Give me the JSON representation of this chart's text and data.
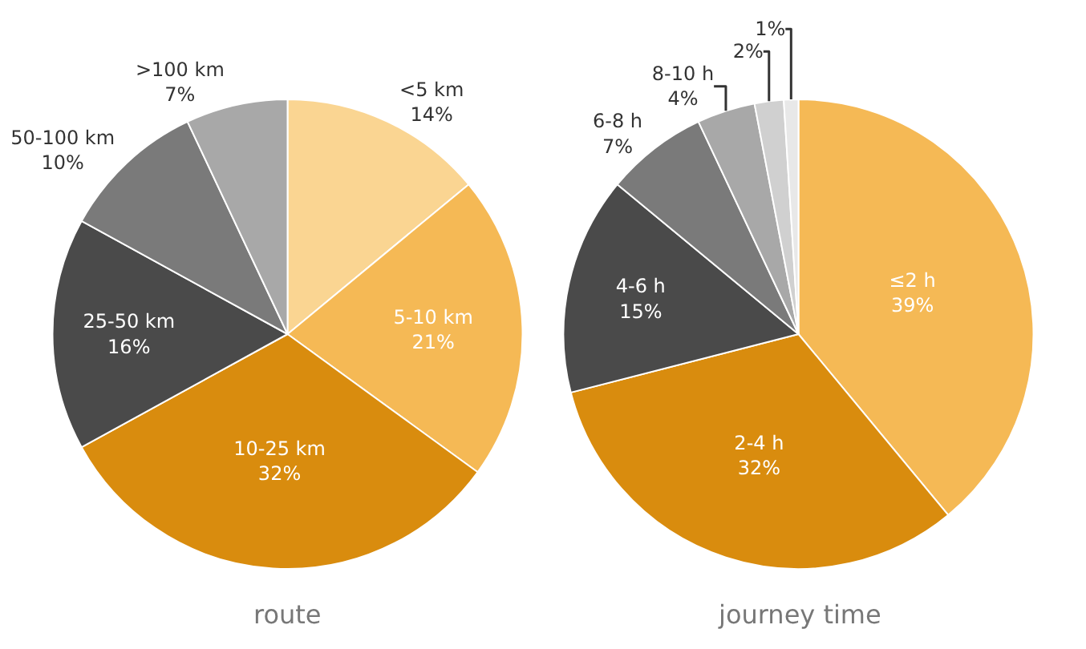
{
  "chart_data": [
    {
      "type": "pie",
      "title": "route",
      "categories": [
        "<5 km",
        "5-10 km",
        "10-25 km",
        "25-50 km",
        "50-100 km",
        ">100 km"
      ],
      "values": [
        14,
        21,
        32,
        16,
        10,
        7
      ],
      "value_labels": [
        "14%",
        "21%",
        "32%",
        "16%",
        "10%",
        "7%"
      ],
      "colors": [
        "#fad592",
        "#f5b955",
        "#d98c0e",
        "#4a4a4a",
        "#7a7a7a",
        "#a8a8a8"
      ],
      "legend": false
    },
    {
      "type": "pie",
      "title": "journey time",
      "categories": [
        "≤2 h",
        "2-4 h",
        "4-6 h",
        "6-8 h",
        "8-10 h",
        null,
        null
      ],
      "values": [
        39,
        32,
        15,
        7,
        4,
        2,
        1
      ],
      "value_labels": [
        "39%",
        "32%",
        "15%",
        "7%",
        "4%",
        "2%",
        "1%"
      ],
      "colors": [
        "#f5b955",
        "#d98c0e",
        "#4a4a4a",
        "#7a7a7a",
        "#a8a8a8",
        "#d0d0d0",
        "#e8e8e8"
      ],
      "legend": false
    }
  ]
}
